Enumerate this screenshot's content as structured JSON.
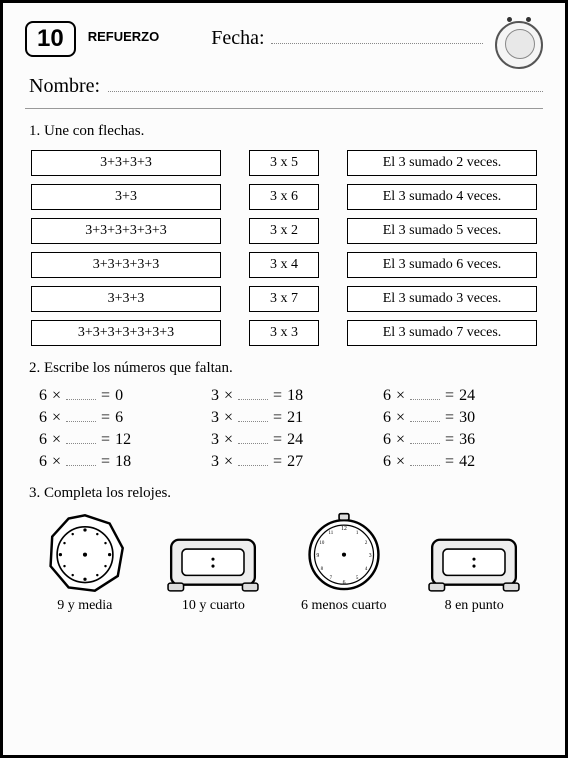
{
  "header": {
    "lesson_number": "10",
    "section_label": "REFUERZO",
    "fecha_label": "Fecha:",
    "nombre_label": "Nombre:"
  },
  "exercise1": {
    "instruction": "1. Une con flechas.",
    "rows": [
      {
        "sum": "3+3+3+3",
        "mult": "3 x 5",
        "desc": "El 3 sumado 2 veces."
      },
      {
        "sum": "3+3",
        "mult": "3 x 6",
        "desc": "El 3 sumado 4 veces."
      },
      {
        "sum": "3+3+3+3+3+3",
        "mult": "3 x 2",
        "desc": "El 3 sumado 5 veces."
      },
      {
        "sum": "3+3+3+3+3",
        "mult": "3 x 4",
        "desc": "El 3 sumado 6 veces."
      },
      {
        "sum": "3+3+3",
        "mult": "3 x 7",
        "desc": "El 3 sumado 3 veces."
      },
      {
        "sum": "3+3+3+3+3+3+3",
        "mult": "3 x 3",
        "desc": "El 3 sumado 7 veces."
      }
    ]
  },
  "exercise2": {
    "instruction": "2. Escribe los números que faltan.",
    "equations": [
      {
        "a": "6",
        "op": "×",
        "b_blank": true,
        "eq": "=",
        "r": "0"
      },
      {
        "a": "3",
        "op": "×",
        "b_blank": true,
        "eq": "=",
        "r": "18"
      },
      {
        "a": "6",
        "op": "×",
        "b_blank": true,
        "eq": "=",
        "r": "24"
      },
      {
        "a": "6",
        "op": "×",
        "b_blank": true,
        "eq": "=",
        "r": "6"
      },
      {
        "a": "3",
        "op": "×",
        "b_blank": true,
        "eq": "=",
        "r": "21"
      },
      {
        "a": "6",
        "op": "×",
        "b_blank": true,
        "eq": "=",
        "r": "30"
      },
      {
        "a": "6",
        "op": "×",
        "b_blank": true,
        "eq": "=",
        "r": "12"
      },
      {
        "a": "3",
        "op": "×",
        "b_blank": true,
        "eq": "=",
        "r": "24"
      },
      {
        "a": "6",
        "op": "×",
        "b_blank": true,
        "eq": "=",
        "r": "36"
      },
      {
        "a": "6",
        "op": "×",
        "b_blank": true,
        "eq": "=",
        "r": "18"
      },
      {
        "a": "3",
        "op": "×",
        "b_blank": true,
        "eq": "=",
        "r": "27"
      },
      {
        "a": "6",
        "op": "×",
        "b_blank": true,
        "eq": "=",
        "r": "42"
      }
    ]
  },
  "exercise3": {
    "instruction": "3. Completa los relojes.",
    "clocks": [
      {
        "type": "round-octagon",
        "label": "9 y media"
      },
      {
        "type": "digital",
        "label": "10 y cuarto"
      },
      {
        "type": "round",
        "label": "6 menos cuarto"
      },
      {
        "type": "digital",
        "label": "8 en punto"
      }
    ]
  },
  "colors": {
    "border": "#000000",
    "background": "#fcfcfc",
    "dotted": "#888888"
  }
}
